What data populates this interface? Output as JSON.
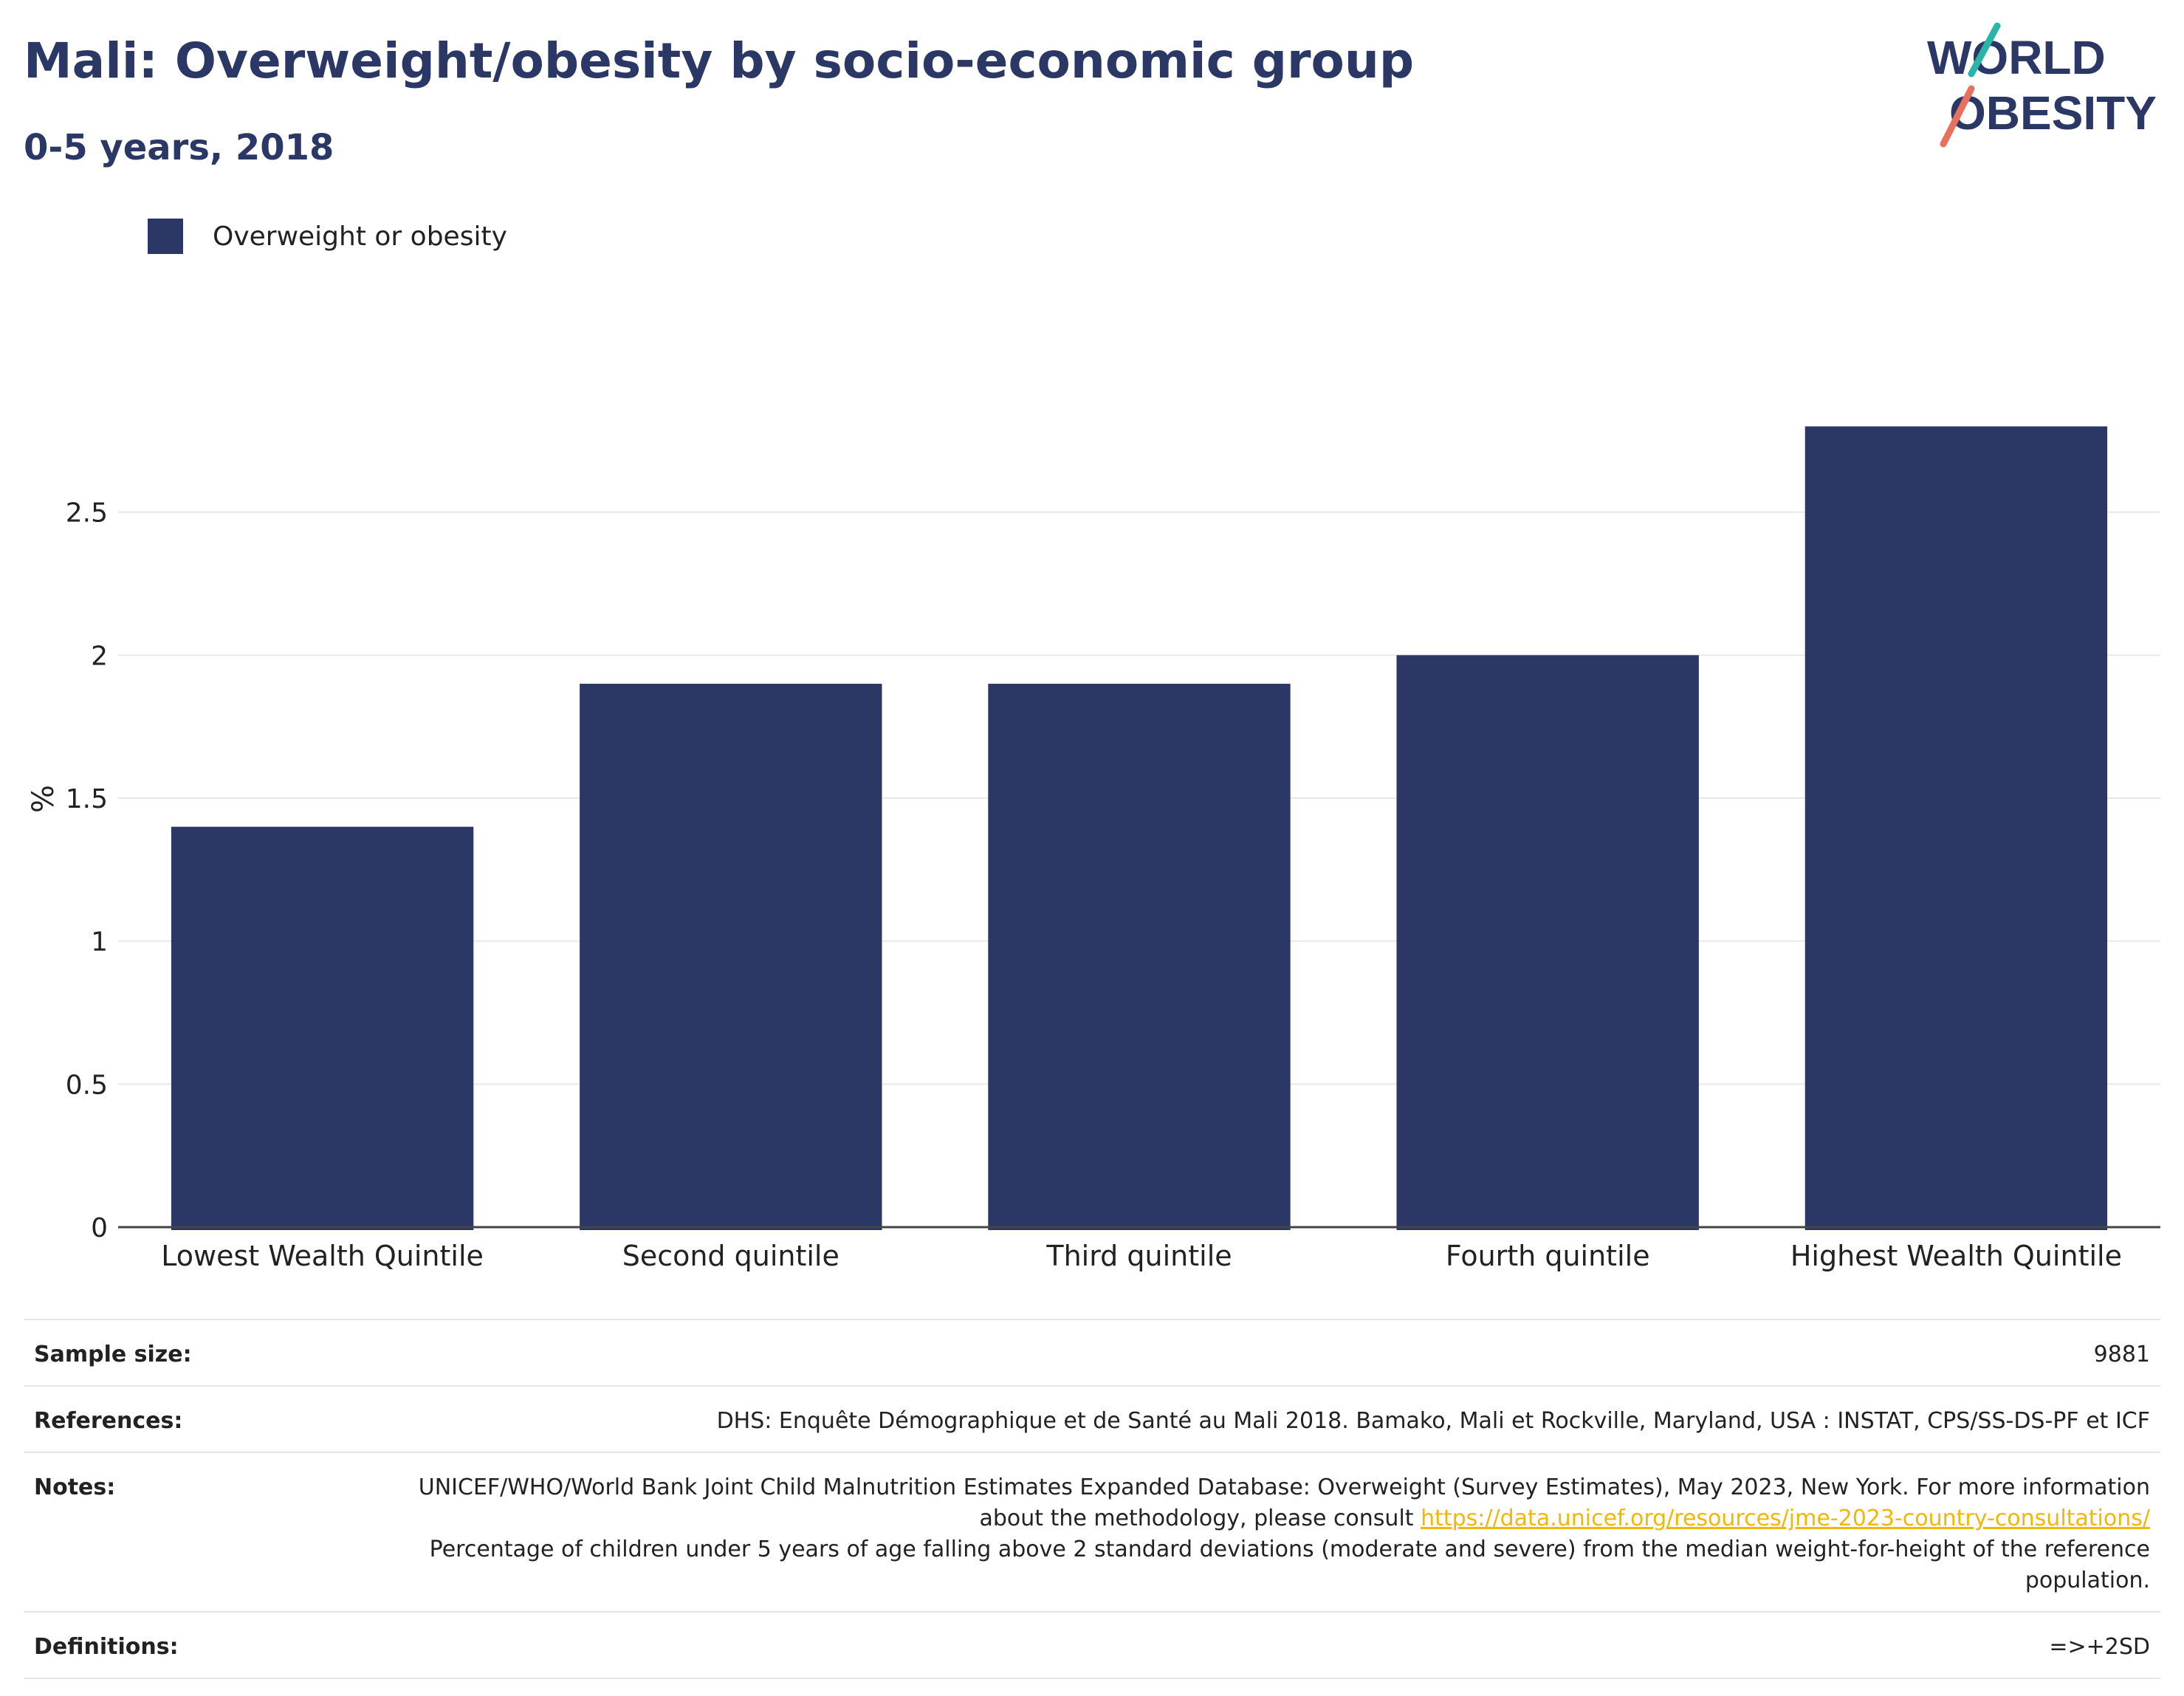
{
  "header": {
    "title": "Mali: Overweight/obesity by socio-economic group",
    "subtitle": "0-5 years, 2018"
  },
  "logo": {
    "line1": "WORLD",
    "line2": "OBESITY",
    "colors": {
      "text": "#2b3764",
      "slash_top": "#2bb5a8",
      "slash_bottom": "#e8705f"
    }
  },
  "colors": {
    "bar": "#2b3764",
    "grid": "#e8e8e8",
    "axis": "#444444"
  },
  "chart_data": {
    "type": "bar",
    "categories": [
      "Lowest Wealth Quintile",
      "Second quintile",
      "Third quintile",
      "Fourth quintile",
      "Highest Wealth Quintile"
    ],
    "series": [
      {
        "name": "Overweight or obesity",
        "values": [
          1.4,
          1.9,
          1.9,
          2.0,
          2.8
        ]
      }
    ],
    "ylabel": "%",
    "ylim": [
      0,
      3
    ],
    "yticks": [
      0,
      0.5,
      1,
      1.5,
      2,
      2.5
    ],
    "ytick_labels": [
      "0",
      "0.5",
      "1",
      "1.5",
      "2",
      "2.5"
    ],
    "grid": true,
    "legend_position": "top-left"
  },
  "meta": {
    "sample_size": {
      "label": "Sample size:",
      "value": "9881"
    },
    "references": {
      "label": "References:",
      "value": "DHS: Enquête Démographique et de Santé au Mali 2018. Bamako, Mali et Rockville, Maryland, USA : INSTAT, CPS/SS-DS-PF et ICF"
    },
    "notes": {
      "label": "Notes:",
      "text1": "UNICEF/WHO/World Bank Joint Child Malnutrition Estimates Expanded Database: Overweight (Survey Estimates), May 2023, New York. For more information about the methodology, please consult ",
      "link": "https://data.unicef.org/resources/jme-2023-country-consultations/",
      "text2": "Percentage of children under 5 years of age falling above 2 standard deviations (moderate and severe) from the median weight-for-height of the reference population."
    },
    "definitions": {
      "label": "Definitions:",
      "value": "=>+2SD"
    }
  }
}
